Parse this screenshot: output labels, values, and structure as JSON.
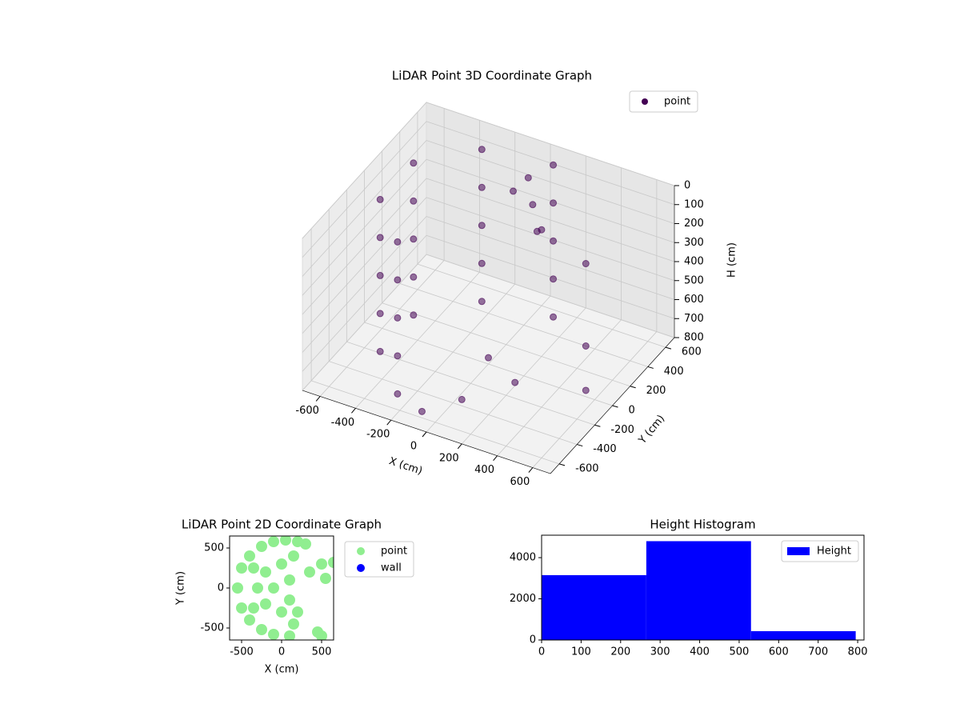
{
  "chart_data": [
    {
      "type": "scatter3d",
      "title": "LiDAR Point 3D Coordinate Graph",
      "xlabel": "X (cm)",
      "ylabel": "Y (cm)",
      "zlabel": "H (cm)",
      "xlim": [
        -700,
        700
      ],
      "ylim": [
        -700,
        700
      ],
      "zlim": [
        800,
        0
      ],
      "xticks": [
        -600,
        -400,
        -200,
        0,
        200,
        400,
        600
      ],
      "yticks": [
        -600,
        -400,
        -200,
        0,
        200,
        400,
        600
      ],
      "zticks": [
        0,
        100,
        200,
        300,
        400,
        500,
        600,
        700,
        800
      ],
      "grid": true,
      "legend": "upper right",
      "series": [
        {
          "name": "point",
          "color": "#440154",
          "x": [
            95,
            95,
            95,
            95,
            95,
            -275,
            -275,
            -275,
            -275,
            -275,
            -517,
            -517,
            -517,
            -517,
            -517,
            -517,
            -517,
            -517,
            -517,
            -517,
            -275,
            -275,
            -275,
            -275,
            -275,
            0,
            50,
            100,
            -50,
            150,
            400,
            500,
            600,
            200,
            100,
            -100,
            300
          ],
          "y": [
            542,
            542,
            542,
            542,
            542,
            476,
            476,
            476,
            476,
            476,
            188,
            188,
            188,
            188,
            188,
            -188,
            -188,
            -188,
            -188,
            -188,
            -476,
            -476,
            -476,
            -476,
            -476,
            450,
            400,
            350,
            380,
            300,
            300,
            100,
            -100,
            -400,
            -500,
            -550,
            -300
          ],
          "z": [
            0,
            200,
            400,
            600,
            800,
            0,
            200,
            400,
            600,
            800,
            0,
            200,
            400,
            600,
            800,
            0,
            200,
            400,
            600,
            800,
            0,
            200,
            400,
            600,
            800,
            50,
            150,
            250,
            100,
            200,
            300,
            600,
            700,
            500,
            700,
            800,
            650
          ]
        }
      ]
    },
    {
      "type": "scatter",
      "title": "LiDAR Point 2D Coordinate Graph",
      "xlabel": "X (cm)",
      "ylabel": "Y (cm)",
      "xlim": [
        -650,
        650
      ],
      "ylim": [
        -650,
        650
      ],
      "xticks": [
        -500,
        0,
        500
      ],
      "yticks": [
        -500,
        0,
        500
      ],
      "legend": "outside right",
      "series": [
        {
          "name": "point",
          "color": "#90ee90",
          "x": [
            -550,
            -500,
            -500,
            -400,
            -400,
            -250,
            -250,
            -100,
            -100,
            50,
            100,
            200,
            300,
            450,
            500,
            -300,
            -200,
            -200,
            -100,
            0,
            0,
            100,
            100,
            150,
            150,
            -350,
            -350,
            350,
            550,
            500,
            650,
            200
          ],
          "y": [
            0,
            250,
            -250,
            400,
            -400,
            520,
            -520,
            580,
            -580,
            600,
            -600,
            580,
            550,
            -550,
            -600,
            0,
            200,
            -200,
            0,
            300,
            -300,
            100,
            -150,
            400,
            -450,
            250,
            -250,
            200,
            120,
            300,
            320,
            -300
          ]
        },
        {
          "name": "wall",
          "color": "#0000ff",
          "x": [],
          "y": []
        }
      ]
    },
    {
      "type": "histogram",
      "title": "Height Histogram",
      "bins": [
        0,
        265,
        530,
        795
      ],
      "values": [
        3150,
        4800,
        430
      ],
      "xlim": [
        0,
        816
      ],
      "ylim": [
        0,
        5090
      ],
      "xticks": [
        0,
        100,
        200,
        300,
        400,
        500,
        600,
        700,
        800
      ],
      "yticks": [
        0,
        2000,
        4000
      ],
      "legend": "upper right",
      "series_name": "Height",
      "color": "#0000ff"
    }
  ]
}
